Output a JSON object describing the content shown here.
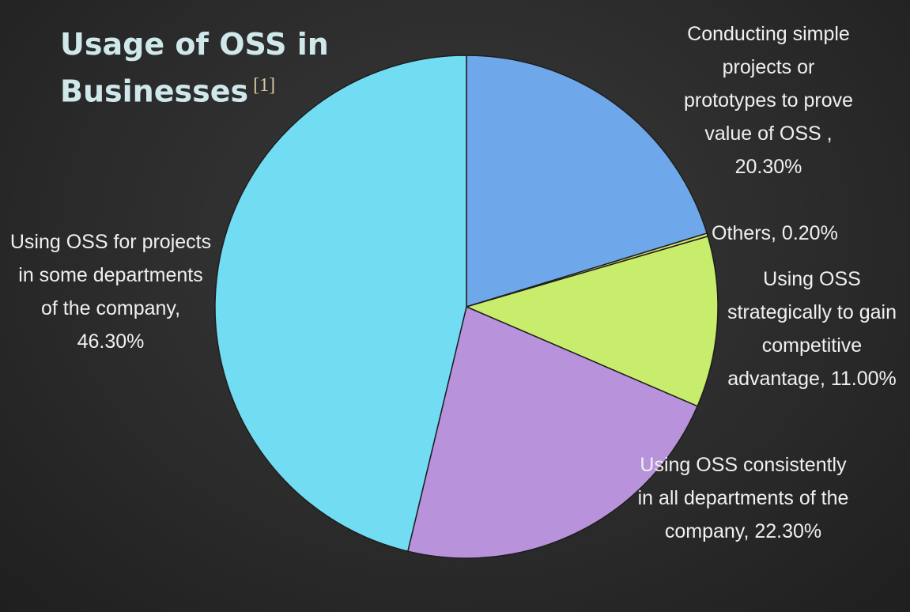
{
  "chart_data": {
    "type": "pie",
    "title": "Usage of OSS in Businesses",
    "title_note": "[1]",
    "labels": [
      "Conducting simple projects or prototypes to prove value of OSS , 20.30%",
      "Others, 0.20%",
      "Using OSS strategically to gain competitive advantage, 11.00%",
      "Using OSS consistently in all departments of the company, 22.30%",
      "Using OSS for projects in some departments of the company, 46.30%"
    ],
    "values": [
      20.3,
      0.2,
      11.0,
      22.3,
      46.3
    ],
    "colors": [
      "#6ea8ea",
      "#d8e46a",
      "#c8ec6c",
      "#b893dc",
      "#72dcf3"
    ]
  }
}
